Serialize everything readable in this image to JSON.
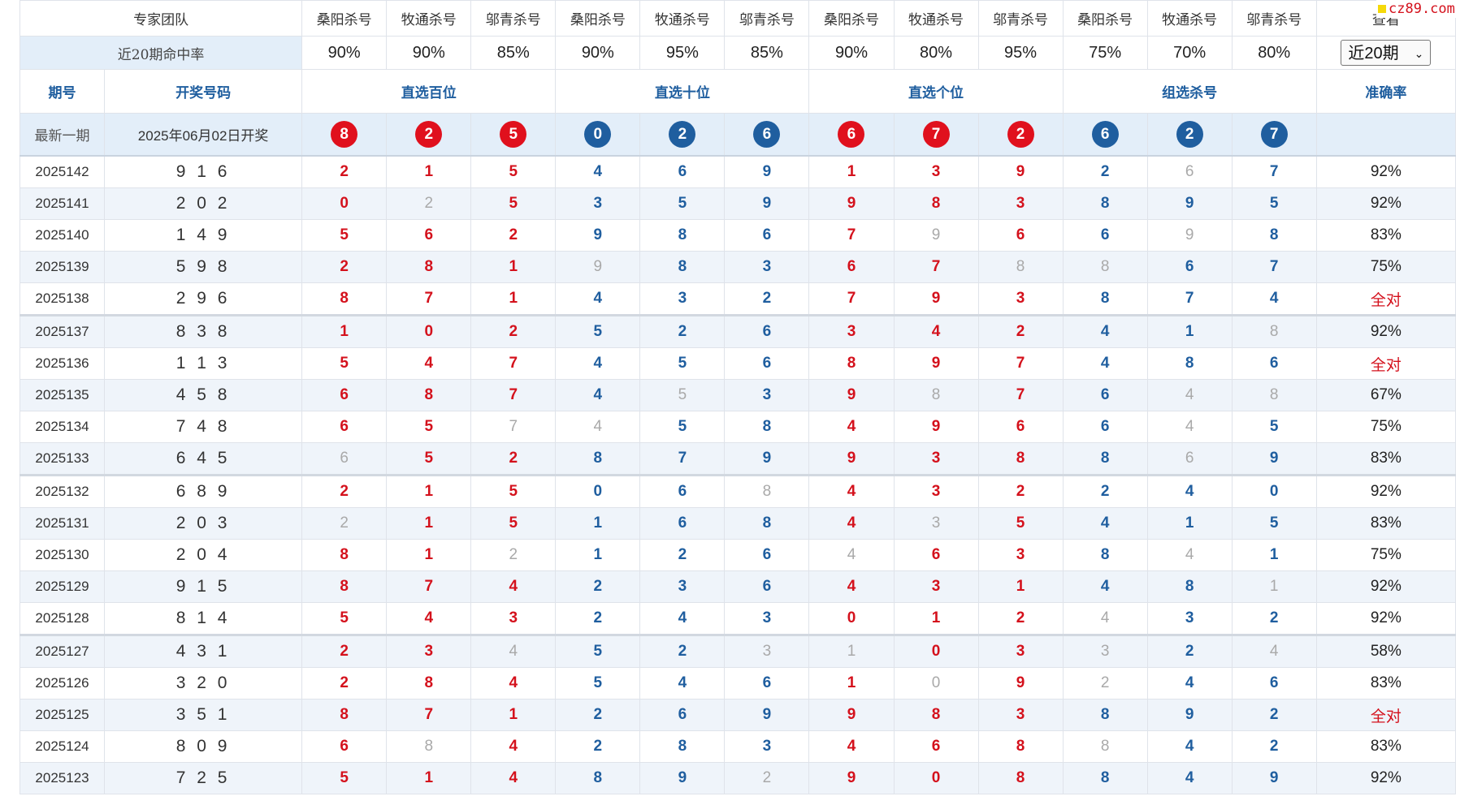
{
  "header": {
    "team_label": "专家团队",
    "experts": [
      "桑阳杀号",
      "牧通杀号",
      "邬青杀号",
      "桑阳杀号",
      "牧通杀号",
      "邬青杀号",
      "桑阳杀号",
      "牧通杀号",
      "邬青杀号",
      "桑阳杀号",
      "牧通杀号",
      "邬青杀号"
    ],
    "view_label": "查看",
    "rate_label": "近20期命中率",
    "rates": [
      "90%",
      "90%",
      "85%",
      "90%",
      "95%",
      "85%",
      "90%",
      "80%",
      "95%",
      "75%",
      "70%",
      "80%"
    ],
    "period_select": "近20期"
  },
  "columns": {
    "issue": "期号",
    "draw": "开奖号码",
    "groups": [
      "直选百位",
      "直选十位",
      "直选个位",
      "组选杀号"
    ],
    "accuracy": "准确率"
  },
  "latest": {
    "label": "最新一期",
    "date": "2025年06月02日开奖",
    "balls": [
      "8",
      "2",
      "5",
      "0",
      "2",
      "6",
      "6",
      "7",
      "2",
      "6",
      "2",
      "7"
    ]
  },
  "rows": [
    {
      "issue": "2025142",
      "draw": "9 1 6",
      "kills": [
        "2",
        "1",
        "5",
        "4",
        "6",
        "9",
        "1",
        "3",
        "9",
        "2",
        "6",
        "7"
      ],
      "gray": [
        10
      ],
      "acc": "92%"
    },
    {
      "issue": "2025141",
      "draw": "2 0 2",
      "kills": [
        "0",
        "2",
        "5",
        "3",
        "5",
        "9",
        "9",
        "8",
        "3",
        "8",
        "9",
        "5"
      ],
      "gray": [
        1
      ],
      "acc": "92%"
    },
    {
      "issue": "2025140",
      "draw": "1 4 9",
      "kills": [
        "5",
        "6",
        "2",
        "9",
        "8",
        "6",
        "7",
        "9",
        "6",
        "6",
        "9",
        "8"
      ],
      "gray": [
        7,
        10
      ],
      "acc": "83%"
    },
    {
      "issue": "2025139",
      "draw": "5 9 8",
      "kills": [
        "2",
        "8",
        "1",
        "9",
        "8",
        "3",
        "6",
        "7",
        "8",
        "8",
        "6",
        "7"
      ],
      "gray": [
        3,
        8,
        9
      ],
      "acc": "75%"
    },
    {
      "issue": "2025138",
      "draw": "2 9 6",
      "kills": [
        "8",
        "7",
        "1",
        "4",
        "3",
        "2",
        "7",
        "9",
        "3",
        "8",
        "7",
        "4"
      ],
      "gray": [],
      "acc": "全对"
    },
    {
      "issue": "2025137",
      "draw": "8 3 8",
      "kills": [
        "1",
        "0",
        "2",
        "5",
        "2",
        "6",
        "3",
        "4",
        "2",
        "4",
        "1",
        "8"
      ],
      "gray": [
        11
      ],
      "acc": "92%"
    },
    {
      "issue": "2025136",
      "draw": "1 1 3",
      "kills": [
        "5",
        "4",
        "7",
        "4",
        "5",
        "6",
        "8",
        "9",
        "7",
        "4",
        "8",
        "6"
      ],
      "gray": [],
      "acc": "全对"
    },
    {
      "issue": "2025135",
      "draw": "4 5 8",
      "kills": [
        "6",
        "8",
        "7",
        "4",
        "5",
        "3",
        "9",
        "8",
        "7",
        "6",
        "4",
        "8"
      ],
      "gray": [
        4,
        7,
        10,
        11
      ],
      "acc": "67%"
    },
    {
      "issue": "2025134",
      "draw": "7 4 8",
      "kills": [
        "6",
        "5",
        "7",
        "4",
        "5",
        "8",
        "4",
        "9",
        "6",
        "6",
        "4",
        "5"
      ],
      "gray": [
        2,
        3,
        10
      ],
      "acc": "75%"
    },
    {
      "issue": "2025133",
      "draw": "6 4 5",
      "kills": [
        "6",
        "5",
        "2",
        "8",
        "7",
        "9",
        "9",
        "3",
        "8",
        "8",
        "6",
        "9"
      ],
      "gray": [
        0,
        10
      ],
      "acc": "83%"
    },
    {
      "issue": "2025132",
      "draw": "6 8 9",
      "kills": [
        "2",
        "1",
        "5",
        "0",
        "6",
        "8",
        "4",
        "3",
        "2",
        "2",
        "4",
        "0"
      ],
      "gray": [
        5
      ],
      "acc": "92%"
    },
    {
      "issue": "2025131",
      "draw": "2 0 3",
      "kills": [
        "2",
        "1",
        "5",
        "1",
        "6",
        "8",
        "4",
        "3",
        "5",
        "4",
        "1",
        "5"
      ],
      "gray": [
        0,
        7
      ],
      "acc": "83%"
    },
    {
      "issue": "2025130",
      "draw": "2 0 4",
      "kills": [
        "8",
        "1",
        "2",
        "1",
        "2",
        "6",
        "4",
        "6",
        "3",
        "8",
        "4",
        "1"
      ],
      "gray": [
        2,
        6,
        10
      ],
      "acc": "75%"
    },
    {
      "issue": "2025129",
      "draw": "9 1 5",
      "kills": [
        "8",
        "7",
        "4",
        "2",
        "3",
        "6",
        "4",
        "3",
        "1",
        "4",
        "8",
        "1"
      ],
      "gray": [
        11
      ],
      "acc": "92%"
    },
    {
      "issue": "2025128",
      "draw": "8 1 4",
      "kills": [
        "5",
        "4",
        "3",
        "2",
        "4",
        "3",
        "0",
        "1",
        "2",
        "4",
        "3",
        "2"
      ],
      "gray": [
        9
      ],
      "acc": "92%"
    },
    {
      "issue": "2025127",
      "draw": "4 3 1",
      "kills": [
        "2",
        "3",
        "4",
        "5",
        "2",
        "3",
        "1",
        "0",
        "3",
        "3",
        "2",
        "4"
      ],
      "gray": [
        2,
        5,
        6,
        9,
        11
      ],
      "acc": "58%"
    },
    {
      "issue": "2025126",
      "draw": "3 2 0",
      "kills": [
        "2",
        "8",
        "4",
        "5",
        "4",
        "6",
        "1",
        "0",
        "9",
        "2",
        "4",
        "6"
      ],
      "gray": [
        7,
        9
      ],
      "acc": "83%"
    },
    {
      "issue": "2025125",
      "draw": "3 5 1",
      "kills": [
        "8",
        "7",
        "1",
        "2",
        "6",
        "9",
        "9",
        "8",
        "3",
        "8",
        "9",
        "2"
      ],
      "gray": [],
      "acc": "全对"
    },
    {
      "issue": "2025124",
      "draw": "8 0 9",
      "kills": [
        "6",
        "8",
        "4",
        "2",
        "8",
        "3",
        "4",
        "6",
        "8",
        "8",
        "4",
        "2"
      ],
      "gray": [
        1,
        9
      ],
      "acc": "83%"
    },
    {
      "issue": "2025123",
      "draw": "7 2 5",
      "kills": [
        "5",
        "1",
        "4",
        "8",
        "9",
        "2",
        "9",
        "0",
        "8",
        "8",
        "4",
        "9"
      ],
      "gray": [
        5
      ],
      "acc": "92%"
    }
  ],
  "watermark": "cz89.com",
  "colors": {
    "red": "#d4111c",
    "blue": "#1f5e9f",
    "gray": "#a9a9a9",
    "header_bg": "#e3eef9",
    "alt_row": "#eff4fa"
  }
}
